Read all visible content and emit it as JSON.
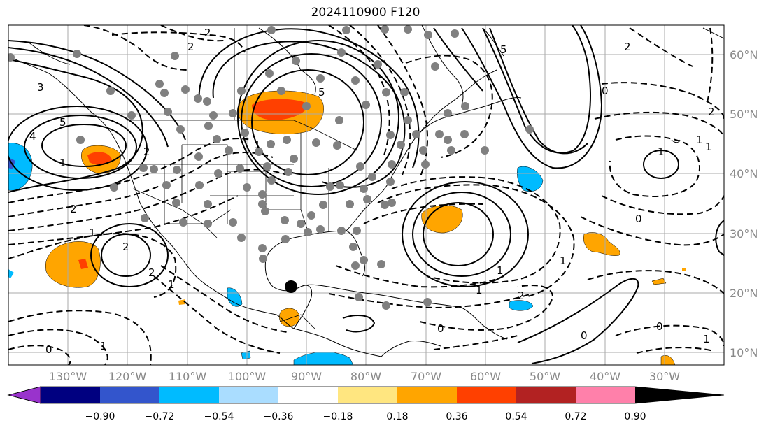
{
  "title": "2024110900 F120",
  "lat_labels": [
    "60°N",
    "50°N",
    "40°N",
    "30°N",
    "20°N",
    "10°N"
  ],
  "lon_labels": [
    "130°W",
    "120°W",
    "110°W",
    "100°W",
    "90°W",
    "80°W",
    "70°W",
    "60°W",
    "50°W",
    "40°W",
    "30°W"
  ],
  "colorbar": {
    "ticks": [
      "−0.90",
      "−0.72",
      "−0.54",
      "−0.36",
      "−0.18",
      "0.18",
      "0.36",
      "0.54",
      "0.72",
      "0.90"
    ],
    "colors": [
      "#9933cc",
      "#000080",
      "#3355cc",
      "#00bbff",
      "#aaddff",
      "#ffffff",
      "#ffe680",
      "#ffa500",
      "#ff4000",
      "#b22222",
      "#ff80aa"
    ]
  },
  "contour_labels": [
    "2",
    "5",
    "3",
    "4",
    "5",
    "2",
    "1",
    "2",
    "1",
    "2",
    "1",
    "2",
    "0",
    "1",
    "2",
    "1",
    "0",
    "1",
    "0",
    "1",
    "1",
    "2",
    "0",
    "1",
    "0",
    "1",
    "2",
    "5",
    "2",
    "1",
    "0",
    "1"
  ],
  "marker_colors": {
    "station": "#808080",
    "center": "#000000"
  }
}
